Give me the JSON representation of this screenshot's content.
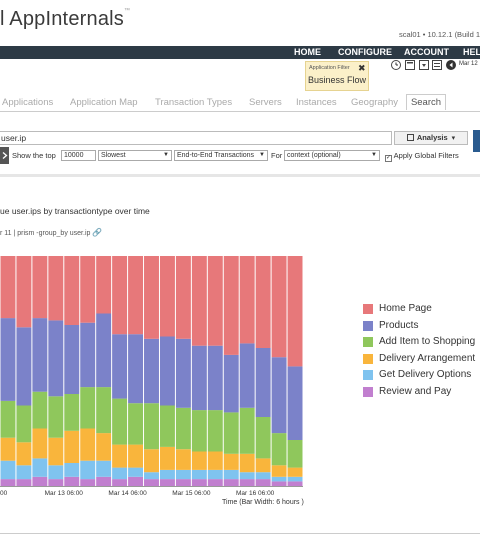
{
  "app": {
    "logo": "l AppInternals",
    "logo_mark": "™",
    "host": "scal01  •  10.12.1 (Build 1"
  },
  "nav": {
    "home": "HOME",
    "configure": "CONFIGURE",
    "account": "ACCOUNT",
    "help": "HEL"
  },
  "filter": {
    "label": "Application Filter",
    "value": "Business Flow",
    "close": "✖"
  },
  "date_label": "Mar 12",
  "tabs": [
    "Applications",
    "Application Map",
    "Transaction Types",
    "Servers",
    "Instances",
    "Geography",
    "Search"
  ],
  "query": {
    "text": "user.ip",
    "analysis_label": "Analysis"
  },
  "controls": {
    "show_top_label": "Show the top",
    "top_value": "10000",
    "sort": "Slowest",
    "scope": "End-to-End Transactions",
    "for_label": "For",
    "context": "context (optional)",
    "global_filters": "Apply Global Filters",
    "global_filters_checked": true
  },
  "chart": {
    "title": "ue user.ips by transactiontype over time",
    "subtitle": "r 11  |  prism -group_by user.ip",
    "x_axis_label": "Time (Bar Width: 6 hours )"
  },
  "chart_data": {
    "type": "bar",
    "stacked": true,
    "percent_stacked": true,
    "categories": [
      "b1",
      "b2",
      "b3",
      "b4",
      "b5",
      "b6",
      "b7",
      "b8",
      "b9",
      "b10",
      "b11",
      "b12",
      "b13",
      "b14",
      "b15",
      "b16",
      "b17",
      "b18",
      "b19"
    ],
    "x_tick_labels": [
      "00",
      "Mar 13 06:00",
      "Mar 14 06:00",
      "Mar 15 06:00",
      "Mar 16 06:00"
    ],
    "series": [
      {
        "name": "Review and Pay",
        "color": "#c17fcf",
        "values": [
          3,
          3,
          4,
          3,
          4,
          3,
          4,
          3,
          4,
          3,
          3,
          3,
          3,
          3,
          3,
          3,
          3,
          2,
          2
        ]
      },
      {
        "name": "Get Delivery Options",
        "color": "#7fc3ef",
        "values": [
          8,
          6,
          8,
          6,
          6,
          8,
          7,
          5,
          4,
          3,
          4,
          4,
          4,
          4,
          4,
          3,
          3,
          2,
          2
        ]
      },
      {
        "name": "Delivery Arrangement",
        "color": "#f9b53c",
        "values": [
          10,
          10,
          13,
          12,
          14,
          14,
          12,
          10,
          10,
          10,
          10,
          9,
          8,
          8,
          7,
          8,
          6,
          5,
          4
        ]
      },
      {
        "name": "Add Item to Shopping",
        "color": "#8fc75c",
        "values": [
          16,
          16,
          16,
          18,
          16,
          18,
          20,
          20,
          18,
          20,
          18,
          18,
          18,
          18,
          18,
          20,
          18,
          14,
          12
        ]
      },
      {
        "name": "Products",
        "color": "#7b82c9",
        "values": [
          36,
          34,
          32,
          33,
          30,
          28,
          32,
          28,
          30,
          28,
          30,
          30,
          28,
          28,
          25,
          28,
          30,
          33,
          32
        ]
      },
      {
        "name": "Home Page",
        "color": "#e7787a",
        "values": [
          27,
          31,
          27,
          28,
          30,
          29,
          25,
          34,
          34,
          36,
          35,
          36,
          39,
          39,
          43,
          38,
          40,
          44,
          48
        ]
      }
    ]
  }
}
